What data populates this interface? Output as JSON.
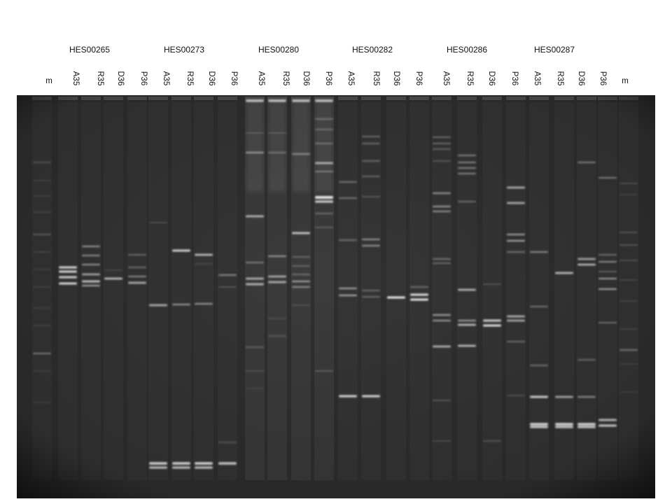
{
  "groups": [
    {
      "label": "HES00265",
      "lanes": [
        "A35",
        "R35",
        "D36",
        "P36"
      ]
    },
    {
      "label": "HES00273",
      "lanes": [
        "A35",
        "R35",
        "D36",
        "P36"
      ]
    },
    {
      "label": "HES00280",
      "lanes": [
        "A35",
        "R35",
        "D36",
        "P36"
      ]
    },
    {
      "label": "HES00282",
      "lanes": [
        "A35",
        "R35",
        "D36",
        "P36"
      ]
    },
    {
      "label": "HES00286",
      "lanes": [
        "A35",
        "R35",
        "D36",
        "P36"
      ]
    },
    {
      "label": "HES00287",
      "lanes": [
        "A35",
        "R35",
        "D36",
        "P36"
      ]
    }
  ],
  "marker_left": "m",
  "marker_right": "m",
  "gel_background": "#303030",
  "band_color": "#ffffff"
}
